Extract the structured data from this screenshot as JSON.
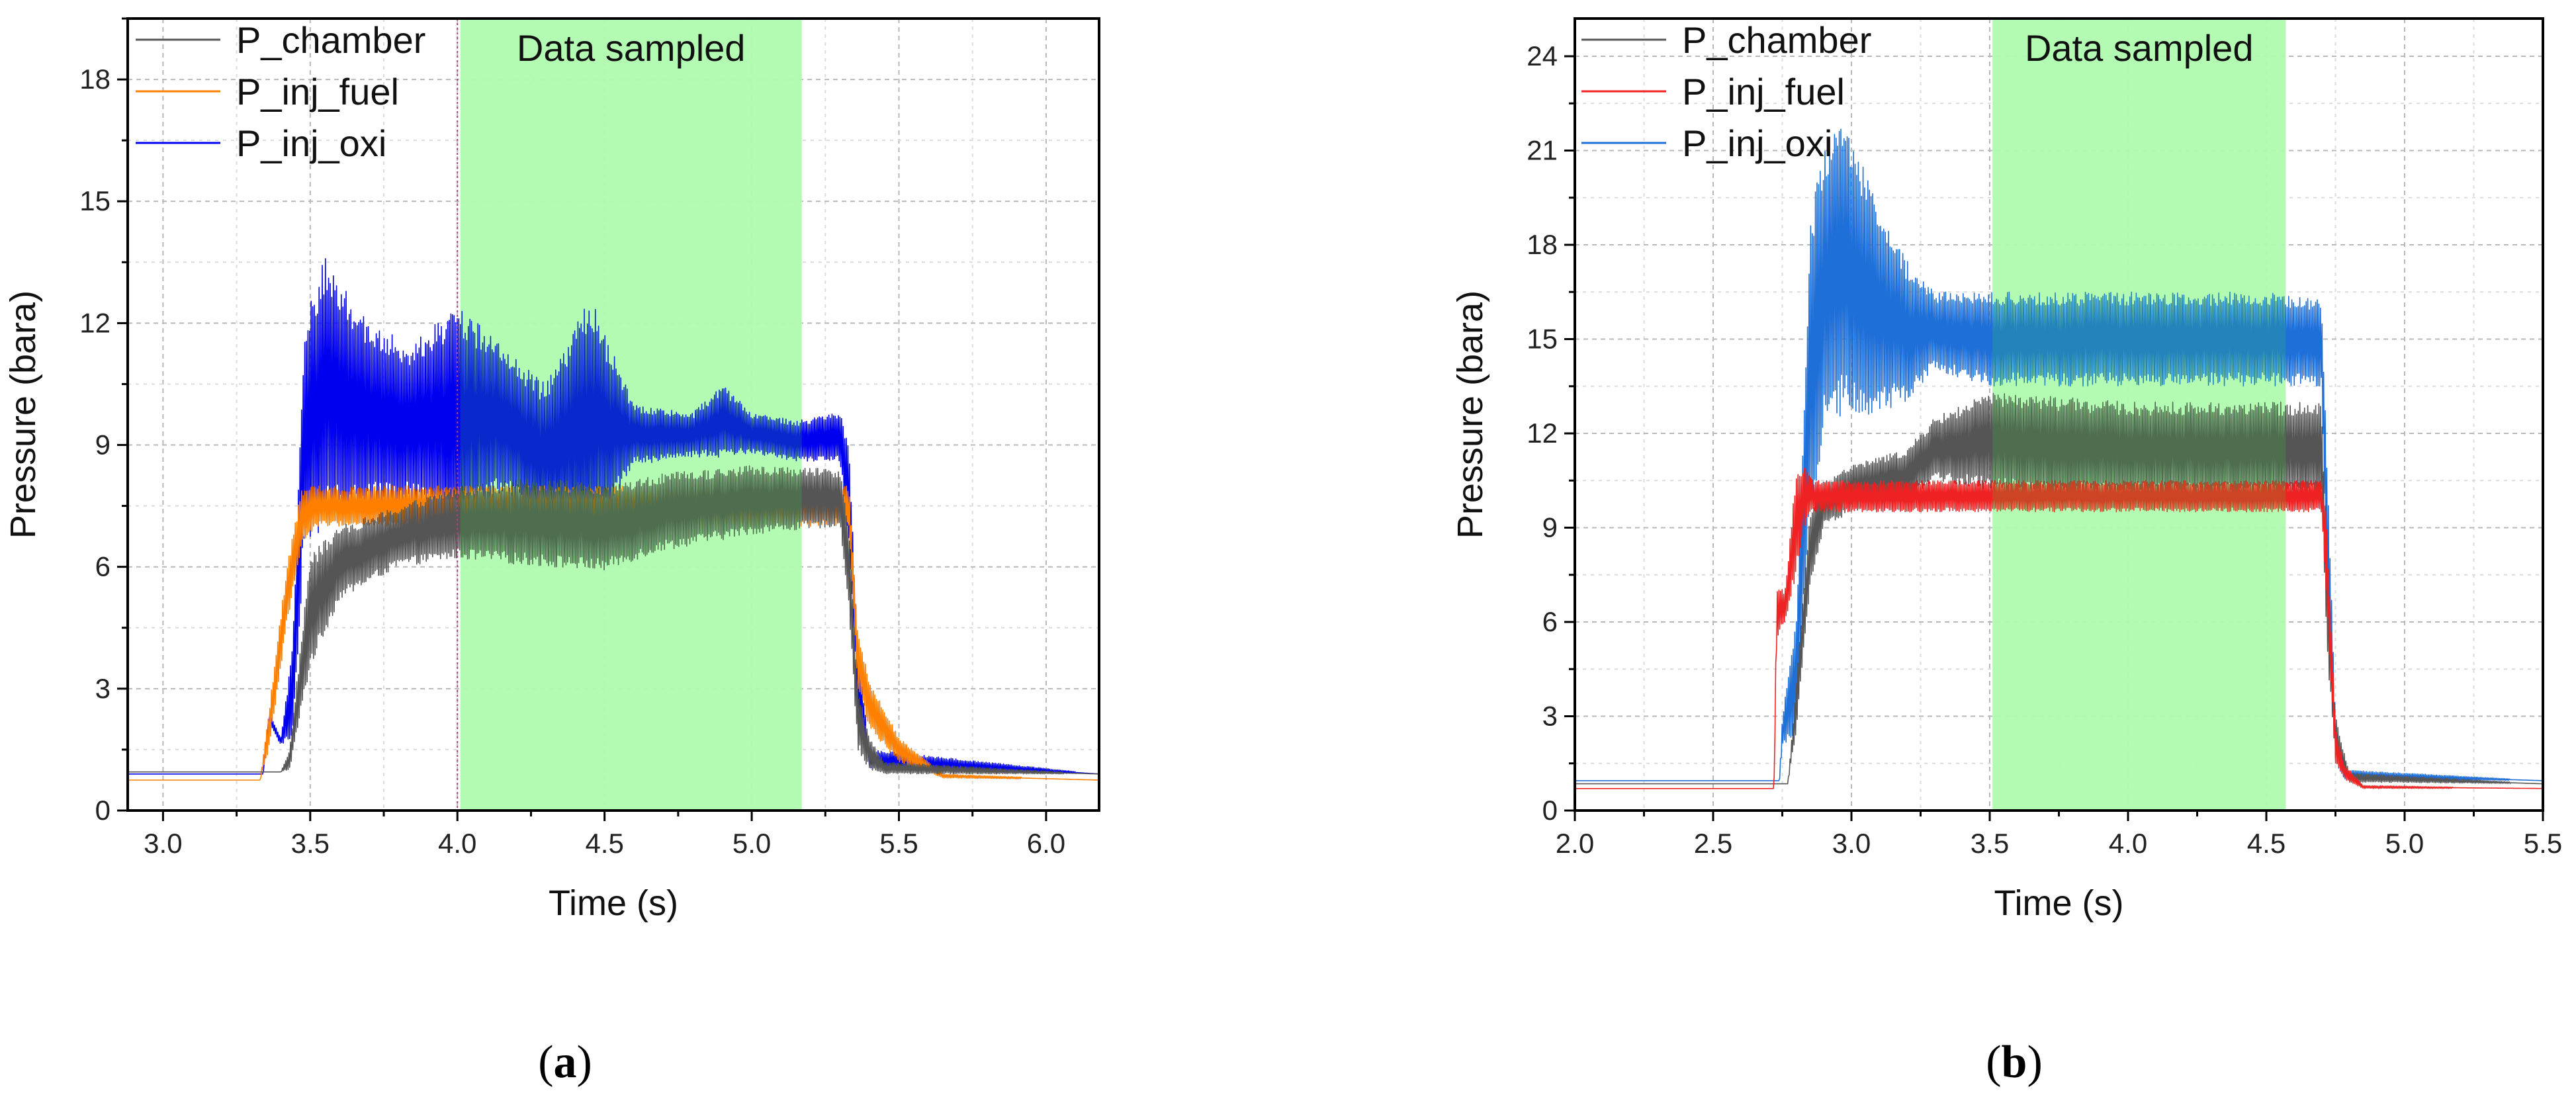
{
  "chart_data": [
    {
      "panel": "a",
      "type": "line",
      "xlabel": "Time (s)",
      "ylabel": "Pressure (bara)",
      "xlim": [
        2.88,
        6.18
      ],
      "ylim": [
        0,
        19.5
      ],
      "xticks": [
        "3.0",
        "3.5",
        "4.0",
        "4.5",
        "5.0",
        "5.5",
        "6.0"
      ],
      "xtick_values": [
        3.0,
        3.5,
        4.0,
        4.5,
        5.0,
        5.5,
        6.0
      ],
      "yticks": [
        "0",
        "3",
        "6",
        "9",
        "12",
        "15",
        "18"
      ],
      "ytick_values": [
        0,
        3,
        6,
        9,
        12,
        15,
        18
      ],
      "grid": true,
      "legend_position": "top-left",
      "shaded_region": {
        "label": "Data sampled",
        "x_start": 4.01,
        "x_end": 5.17,
        "color": "#ccffcc"
      },
      "marker_line_x": 4.0,
      "series": [
        {
          "name": "P_chamber",
          "color": "#555555",
          "x": [
            2.88,
            3.4,
            3.43,
            3.5,
            3.6,
            3.8,
            4.0,
            4.3,
            4.5,
            4.7,
            5.0,
            5.3,
            5.33,
            5.36,
            5.4,
            5.45,
            6.18
          ],
          "low": [
            0.95,
            0.95,
            1.0,
            3.5,
            5.2,
            6.0,
            6.2,
            6.0,
            5.9,
            6.4,
            6.8,
            7.0,
            5.0,
            1.5,
            1.0,
            0.9,
            0.9
          ],
          "high": [
            0.95,
            0.95,
            1.5,
            6.3,
            7.0,
            7.5,
            8.0,
            8.2,
            8.0,
            8.3,
            8.5,
            8.4,
            7.0,
            3.0,
            1.8,
            1.2,
            0.9
          ]
        },
        {
          "name": "P_inj_fuel",
          "color": "#ff8000",
          "x": [
            2.88,
            3.33,
            3.36,
            3.42,
            3.47,
            3.52,
            5.33,
            5.36,
            5.4,
            5.5,
            5.65,
            6.18
          ],
          "low": [
            0.75,
            0.75,
            1.5,
            4.5,
            6.5,
            7.0,
            7.0,
            3.0,
            2.0,
            1.2,
            0.8,
            0.75
          ],
          "high": [
            0.75,
            0.75,
            2.5,
            6.0,
            7.9,
            8.0,
            8.0,
            4.5,
            3.2,
            1.8,
            0.9,
            0.75
          ]
        },
        {
          "name": "P_inj_oxi",
          "color": "#0000ee",
          "x": [
            2.88,
            3.34,
            3.36,
            3.4,
            3.44,
            3.48,
            3.55,
            3.7,
            3.85,
            4.0,
            4.15,
            4.3,
            4.45,
            4.6,
            4.8,
            4.9,
            5.0,
            5.15,
            5.3,
            5.33,
            5.36,
            5.4,
            6.18
          ],
          "low": [
            0.9,
            0.9,
            2.2,
            1.6,
            1.8,
            6.5,
            7.0,
            7.5,
            7.5,
            6.8,
            7.8,
            7.0,
            6.5,
            8.5,
            8.7,
            8.7,
            8.8,
            8.6,
            8.6,
            6.5,
            2.5,
            1.0,
            0.9
          ],
          "high": [
            0.9,
            0.9,
            2.4,
            1.8,
            4.0,
            12.0,
            13.7,
            12.0,
            11.5,
            12.5,
            11.5,
            10.5,
            12.7,
            10.0,
            9.8,
            10.5,
            9.8,
            9.6,
            9.8,
            9.0,
            4.0,
            1.5,
            0.9
          ]
        }
      ]
    },
    {
      "panel": "b",
      "type": "line",
      "xlabel": "Time (s)",
      "ylabel": "Pressure (bara)",
      "xlim": [
        2.0,
        5.5
      ],
      "ylim": [
        0,
        25.2
      ],
      "xticks": [
        "2.0",
        "2.5",
        "3.0",
        "3.5",
        "4.0",
        "4.5",
        "5.0",
        "5.5"
      ],
      "xtick_values": [
        2.0,
        2.5,
        3.0,
        3.5,
        4.0,
        4.5,
        5.0,
        5.5
      ],
      "yticks": [
        "0",
        "3",
        "6",
        "9",
        "12",
        "15",
        "18",
        "21",
        "24"
      ],
      "ytick_values": [
        0,
        3,
        6,
        9,
        12,
        15,
        18,
        21,
        24
      ],
      "grid": true,
      "legend_position": "top-left",
      "shaded_region": {
        "label": "Data sampled",
        "x_start": 3.51,
        "x_end": 4.57,
        "color": "#ccffcc"
      },
      "series": [
        {
          "name": "P_chamber",
          "color": "#555555",
          "x": [
            2.0,
            2.77,
            2.8,
            2.85,
            2.9,
            3.0,
            3.2,
            3.3,
            3.5,
            3.7,
            4.0,
            4.3,
            4.7,
            4.72,
            4.75,
            4.8,
            5.5
          ],
          "low": [
            0.85,
            0.85,
            2.5,
            7.0,
            9.0,
            9.5,
            9.8,
            10.5,
            10.2,
            10.0,
            10.0,
            10.0,
            10.0,
            5.0,
            1.5,
            0.9,
            0.85
          ],
          "high": [
            0.85,
            0.85,
            4.0,
            9.5,
            10.5,
            11.0,
            11.5,
            12.5,
            13.3,
            13.2,
            13.0,
            13.0,
            13.0,
            8.0,
            3.0,
            1.2,
            0.85
          ]
        },
        {
          "name": "P_inj_fuel",
          "color": "#ee2222",
          "x": [
            2.0,
            2.72,
            2.73,
            2.76,
            2.8,
            2.83,
            2.86,
            4.7,
            4.72,
            4.75,
            4.78,
            4.85,
            5.5
          ],
          "low": [
            0.7,
            0.7,
            5.5,
            6.0,
            7.5,
            9.0,
            9.5,
            9.5,
            6.0,
            1.5,
            1.0,
            0.7,
            0.7
          ],
          "high": [
            0.7,
            0.7,
            7.2,
            7.0,
            10.8,
            11.0,
            10.5,
            10.5,
            9.0,
            2.8,
            1.5,
            0.8,
            0.7
          ]
        },
        {
          "name": "P_inj_oxi",
          "color": "#1f6fd8",
          "x": [
            2.0,
            2.74,
            2.75,
            2.8,
            2.85,
            2.9,
            2.95,
            3.05,
            3.2,
            3.3,
            3.5,
            4.0,
            4.5,
            4.7,
            4.72,
            4.75,
            4.78,
            5.5
          ],
          "low": [
            0.95,
            0.95,
            2.0,
            2.5,
            9.0,
            12.0,
            12.5,
            12.5,
            13.0,
            14.0,
            13.5,
            13.5,
            13.5,
            13.5,
            6.0,
            1.5,
            1.0,
            0.95
          ],
          "high": [
            0.95,
            0.95,
            3.0,
            6.0,
            19.0,
            21.0,
            22.5,
            20.5,
            17.5,
            16.5,
            16.5,
            16.5,
            16.5,
            16.3,
            11.0,
            3.0,
            1.3,
            0.95
          ]
        }
      ]
    }
  ],
  "panel_labels": {
    "a": "a",
    "b": "b"
  }
}
